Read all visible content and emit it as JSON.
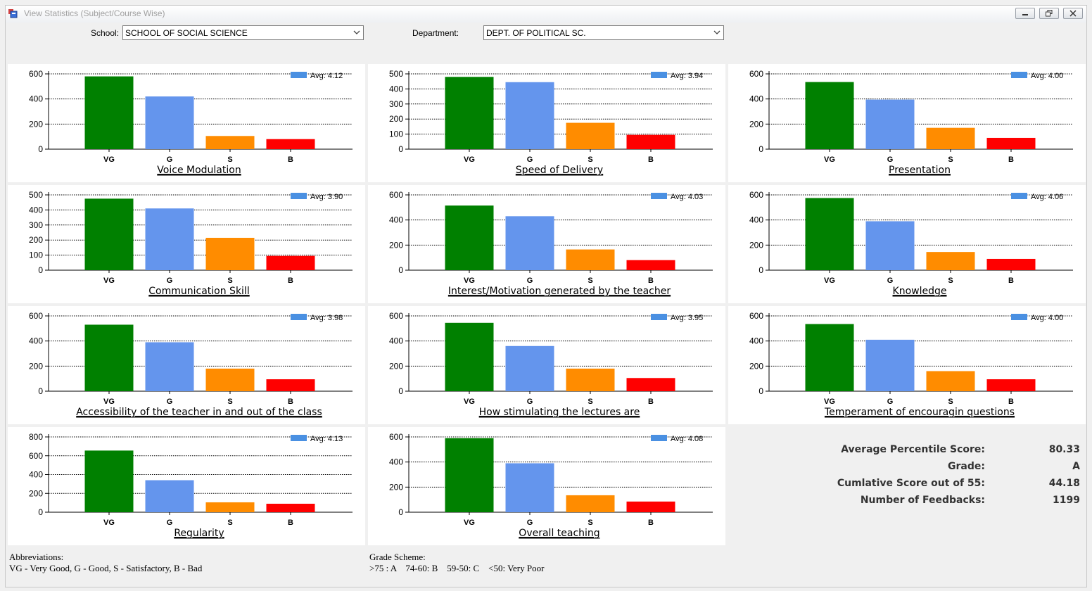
{
  "window": {
    "title": "View Statistics (Subject/Course Wise)"
  },
  "filters": {
    "school_label": "School:",
    "school_value": "SCHOOL OF SOCIAL SCIENCE",
    "department_label": "Department:",
    "department_value": "DEPT. OF POLITICAL SC."
  },
  "colors": {
    "VG": "#008000",
    "G": "#6495ed",
    "S": "#ff8c00",
    "B": "#ff0000",
    "legend": "#4a90e2"
  },
  "chart_data": [
    {
      "type": "bar",
      "title": "Voice Modulation",
      "categories": [
        "VG",
        "G",
        "S",
        "B"
      ],
      "values": [
        580,
        420,
        105,
        80
      ],
      "ylim": [
        0,
        600
      ],
      "yticks": [
        0,
        200,
        400,
        600
      ],
      "legend": "Avg: 4.12"
    },
    {
      "type": "bar",
      "title": "Speed of Delivery",
      "categories": [
        "VG",
        "G",
        "S",
        "B"
      ],
      "values": [
        480,
        445,
        175,
        95
      ],
      "ylim": [
        0,
        500
      ],
      "yticks": [
        0,
        100,
        200,
        300,
        400,
        500
      ],
      "legend": "Avg: 3.94"
    },
    {
      "type": "bar",
      "title": "Presentation",
      "categories": [
        "VG",
        "G",
        "S",
        "B"
      ],
      "values": [
        535,
        395,
        170,
        90
      ],
      "ylim": [
        0,
        600
      ],
      "yticks": [
        0,
        200,
        400,
        600
      ],
      "legend": "Avg: 4.00"
    },
    {
      "type": "bar",
      "title": "Communication Skill",
      "categories": [
        "VG",
        "G",
        "S",
        "B"
      ],
      "values": [
        475,
        410,
        215,
        95
      ],
      "ylim": [
        0,
        500
      ],
      "yticks": [
        0,
        100,
        200,
        300,
        400,
        500
      ],
      "legend": "Avg: 3.90"
    },
    {
      "type": "bar",
      "title": "Interest/Motivation generated by the teacher",
      "categories": [
        "VG",
        "G",
        "S",
        "B"
      ],
      "values": [
        515,
        430,
        165,
        80
      ],
      "ylim": [
        0,
        600
      ],
      "yticks": [
        0,
        200,
        400,
        600
      ],
      "legend": "Avg: 4.03"
    },
    {
      "type": "bar",
      "title": "Knowledge",
      "categories": [
        "VG",
        "G",
        "S",
        "B"
      ],
      "values": [
        575,
        390,
        145,
        90
      ],
      "ylim": [
        0,
        600
      ],
      "yticks": [
        0,
        200,
        400,
        600
      ],
      "legend": "Avg: 4.06"
    },
    {
      "type": "bar",
      "title": "Accessibility of the teacher in and out of the class",
      "categories": [
        "VG",
        "G",
        "S",
        "B"
      ],
      "values": [
        530,
        390,
        180,
        95
      ],
      "ylim": [
        0,
        600
      ],
      "yticks": [
        0,
        200,
        400,
        600
      ],
      "legend": "Avg: 3.98"
    },
    {
      "type": "bar",
      "title": "How stimulating the lectures are",
      "categories": [
        "VG",
        "G",
        "S",
        "B"
      ],
      "values": [
        545,
        360,
        180,
        105
      ],
      "ylim": [
        0,
        600
      ],
      "yticks": [
        0,
        200,
        400,
        600
      ],
      "legend": "Avg: 3.95"
    },
    {
      "type": "bar",
      "title": "Temperament of encouragin questions",
      "categories": [
        "VG",
        "G",
        "S",
        "B"
      ],
      "values": [
        535,
        410,
        160,
        95
      ],
      "ylim": [
        0,
        600
      ],
      "yticks": [
        0,
        200,
        400,
        600
      ],
      "legend": "Avg: 4.00"
    },
    {
      "type": "bar",
      "title": "Regularity",
      "categories": [
        "VG",
        "G",
        "S",
        "B"
      ],
      "values": [
        655,
        340,
        105,
        90
      ],
      "ylim": [
        0,
        800
      ],
      "yticks": [
        0,
        200,
        400,
        600,
        800
      ],
      "legend": "Avg: 4.13"
    },
    {
      "type": "bar",
      "title": "Overall teaching",
      "categories": [
        "VG",
        "G",
        "S",
        "B"
      ],
      "values": [
        590,
        390,
        135,
        85
      ],
      "ylim": [
        0,
        600
      ],
      "yticks": [
        0,
        200,
        400,
        600
      ],
      "legend": "Avg: 4.08"
    }
  ],
  "summary": [
    {
      "label": "Average Percentile Score:",
      "value": "80.33"
    },
    {
      "label": "Grade:",
      "value": "A"
    },
    {
      "label": "Cumlative Score out of 55:",
      "value": "44.18"
    },
    {
      "label": "Number of Feedbacks:",
      "value": "1199"
    }
  ],
  "abbreviations": {
    "heading": "Abbreviations:",
    "text": "VG - Very Good, G - Good, S - Satisfactory, B - Bad"
  },
  "grade_scheme": {
    "heading": "Grade Scheme:",
    "text": ">75 : A    74-60: B    59-50: C    <50: Very Poor"
  }
}
